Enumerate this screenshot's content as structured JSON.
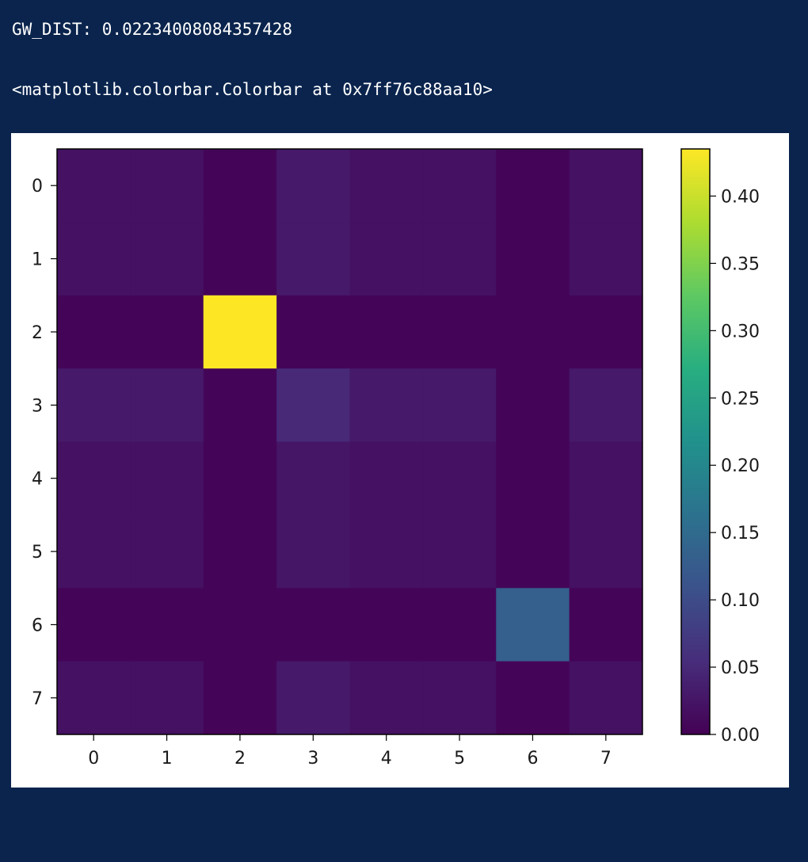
{
  "output": {
    "line1": "GW_DIST: 0.02234008084357428",
    "line2": "<matplotlib.colorbar.Colorbar at 0x7ff76c88aa10>"
  },
  "chart_data": {
    "type": "heatmap",
    "title": "",
    "xlabel": "",
    "ylabel": "",
    "colormap": "viridis",
    "x_ticks": [
      "0",
      "1",
      "2",
      "3",
      "4",
      "5",
      "6",
      "7"
    ],
    "y_ticks": [
      "0",
      "1",
      "2",
      "3",
      "4",
      "5",
      "6",
      "7"
    ],
    "values": [
      [
        0.02,
        0.02,
        0.005,
        0.03,
        0.02,
        0.02,
        0.005,
        0.02
      ],
      [
        0.02,
        0.02,
        0.005,
        0.03,
        0.02,
        0.02,
        0.005,
        0.02
      ],
      [
        0.005,
        0.005,
        0.44,
        0.005,
        0.005,
        0.005,
        0.005,
        0.005
      ],
      [
        0.03,
        0.03,
        0.005,
        0.05,
        0.03,
        0.03,
        0.005,
        0.03
      ],
      [
        0.02,
        0.02,
        0.005,
        0.025,
        0.02,
        0.02,
        0.005,
        0.02
      ],
      [
        0.02,
        0.02,
        0.005,
        0.025,
        0.02,
        0.02,
        0.005,
        0.02
      ],
      [
        0.005,
        0.005,
        0.005,
        0.005,
        0.005,
        0.005,
        0.13,
        0.005
      ],
      [
        0.02,
        0.02,
        0.005,
        0.03,
        0.02,
        0.02,
        0.005,
        0.02
      ]
    ],
    "colorbar": {
      "range": [
        0,
        0.435
      ],
      "ticks": [
        0.0,
        0.05,
        0.1,
        0.15,
        0.2,
        0.25,
        0.3,
        0.35,
        0.4
      ],
      "tick_labels": [
        "0.00",
        "0.05",
        "0.10",
        "0.15",
        "0.20",
        "0.25",
        "0.30",
        "0.35",
        "0.40"
      ]
    }
  }
}
